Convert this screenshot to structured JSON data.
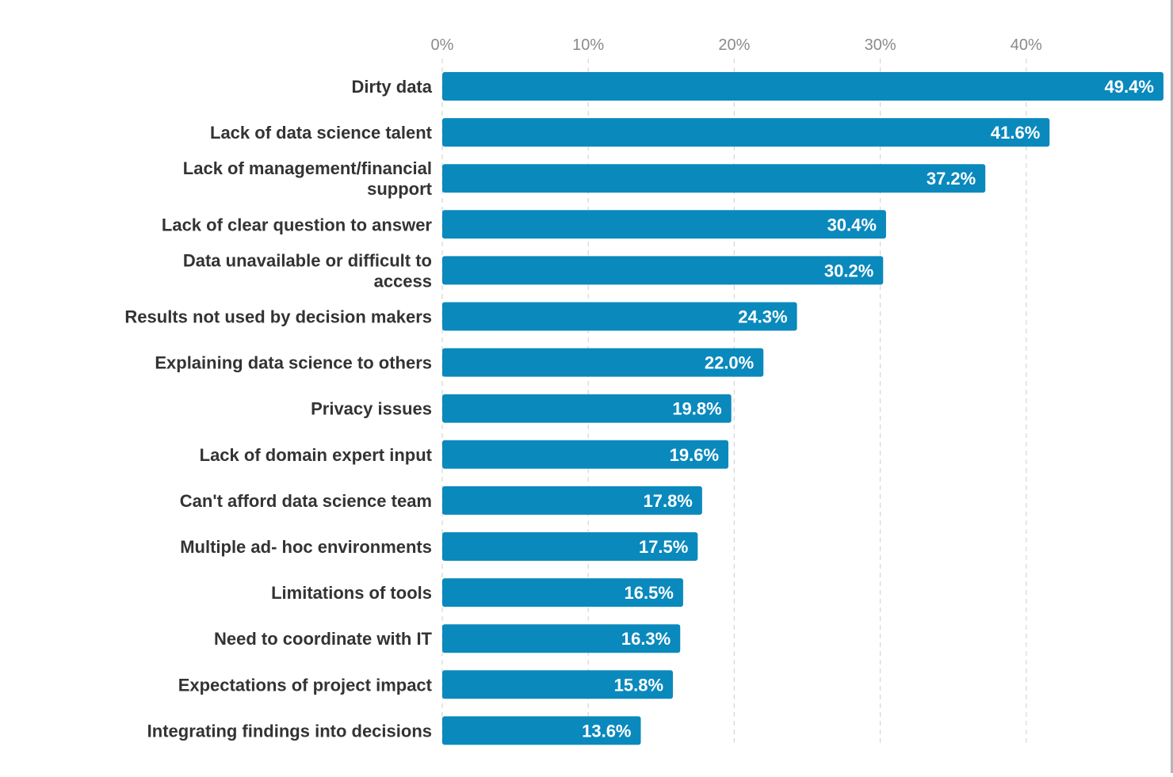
{
  "chart_data": {
    "type": "bar",
    "orientation": "horizontal",
    "categories": [
      "Dirty data",
      "Lack of data science talent",
      "Lack of management/financial support",
      "Lack of clear question to answer",
      "Data unavailable or difficult to access",
      "Results not used by decision makers",
      "Explaining data science to others",
      "Privacy issues",
      "Lack of domain expert input",
      "Can't afford data science team",
      "Multiple ad- hoc environments",
      "Limitations of tools",
      "Need to coordinate with IT",
      "Expectations of project impact",
      "Integrating findings into decisions"
    ],
    "category_lines": [
      [
        "Dirty data"
      ],
      [
        "Lack of data science talent"
      ],
      [
        "Lack of management/financial",
        "support"
      ],
      [
        "Lack of clear question to answer"
      ],
      [
        "Data unavailable or difficult to",
        "access"
      ],
      [
        "Results not used by decision makers"
      ],
      [
        "Explaining data science to others"
      ],
      [
        "Privacy issues"
      ],
      [
        "Lack of domain expert input"
      ],
      [
        "Can't afford data science team"
      ],
      [
        "Multiple ad- hoc environments"
      ],
      [
        "Limitations of tools"
      ],
      [
        "Need to coordinate with IT"
      ],
      [
        "Expectations of project impact"
      ],
      [
        "Integrating findings into decisions"
      ]
    ],
    "values": [
      49.4,
      41.6,
      37.2,
      30.4,
      30.2,
      24.3,
      22.0,
      19.8,
      19.6,
      17.8,
      17.5,
      16.5,
      16.3,
      15.8,
      13.6
    ],
    "value_labels": [
      "49.4%",
      "41.6%",
      "37.2%",
      "30.4%",
      "30.2%",
      "24.3%",
      "22.0%",
      "19.8%",
      "19.6%",
      "17.8%",
      "17.5%",
      "16.5%",
      "16.3%",
      "15.8%",
      "13.6%"
    ],
    "xticks": [
      0,
      10,
      20,
      30,
      40
    ],
    "xtick_labels": [
      "0%",
      "10%",
      "20%",
      "30%",
      "40%"
    ],
    "xlim": [
      0,
      49.4
    ],
    "xaxis_position": "top",
    "grid": true,
    "title": "",
    "xlabel": "",
    "ylabel": "",
    "bar_color": "#0a89bd",
    "grid_color": "#d6d6d6",
    "label_color": "#333333",
    "tick_color": "#8a8a8a"
  }
}
